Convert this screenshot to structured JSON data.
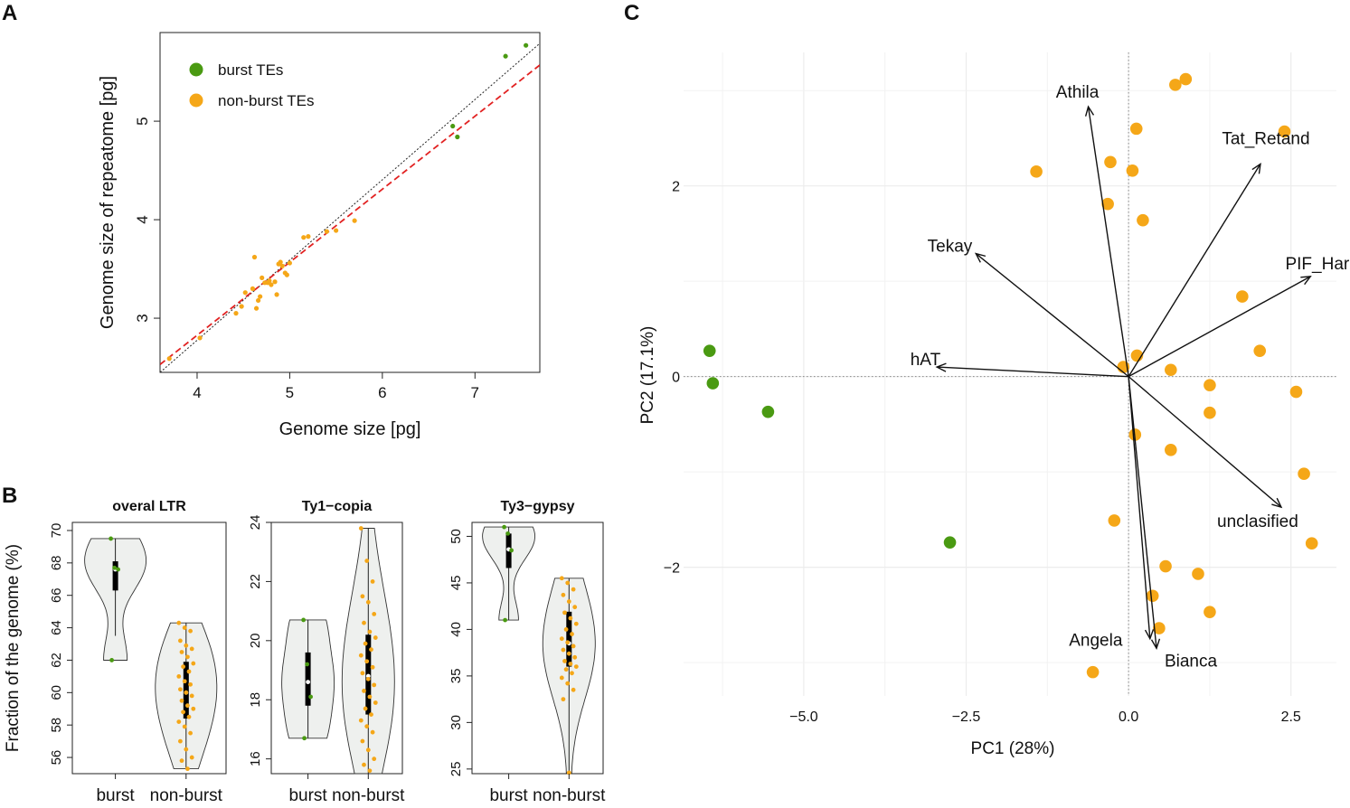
{
  "colors": {
    "burst": "#4a9a12",
    "nonburst": "#f5a718",
    "fit_line": "#e22222",
    "identity_line": "#222222",
    "violin_fill": "#eef0ee",
    "pca_grid": "#ececec"
  },
  "chart_data": [
    {
      "panel": "A",
      "type": "scatter",
      "xlabel": "Genome size [pg]",
      "ylabel": "Genome size of repeatome [pg]",
      "xlim": [
        3.6,
        7.7
      ],
      "ylim": [
        2.45,
        5.9
      ],
      "xticks": [
        4,
        5,
        6,
        7
      ],
      "yticks": [
        3,
        4,
        5
      ],
      "legend": [
        "burst TEs",
        "non-burst TEs"
      ],
      "legend_position": "top-left",
      "series": [
        {
          "name": "burst TEs",
          "x": [
            7.55,
            7.33,
            6.76,
            6.81
          ],
          "y": [
            5.77,
            5.66,
            4.95,
            4.84
          ]
        },
        {
          "name": "non-burst TEs",
          "x": [
            3.7,
            4.03,
            4.42,
            4.48,
            4.52,
            4.6,
            4.62,
            4.64,
            4.66,
            4.68,
            4.7,
            4.73,
            4.76,
            4.78,
            4.8,
            4.84,
            4.86,
            4.88,
            4.9,
            4.92,
            4.95,
            4.97,
            5.0,
            5.15,
            5.2,
            5.4,
            5.5,
            5.7
          ],
          "y": [
            2.59,
            2.8,
            3.05,
            3.12,
            3.26,
            3.3,
            3.62,
            3.1,
            3.18,
            3.22,
            3.41,
            3.36,
            3.36,
            3.38,
            3.34,
            3.37,
            3.24,
            3.55,
            3.57,
            3.53,
            3.46,
            3.44,
            3.56,
            3.82,
            3.83,
            3.88,
            3.89,
            3.99
          ]
        }
      ],
      "lines": [
        {
          "name": "identity",
          "style": "dotted",
          "x": [
            3.6,
            7.7
          ],
          "y": [
            2.45,
            5.79
          ]
        },
        {
          "name": "fit",
          "style": "dashed",
          "x": [
            3.6,
            7.7
          ],
          "y": [
            2.53,
            5.57
          ]
        }
      ]
    },
    {
      "panel": "B",
      "type": "violin",
      "ylabel": "Fraction of the genome (%)",
      "categories": [
        "burst",
        "non-burst"
      ],
      "subplots": [
        {
          "title": "overal LTR",
          "ylim": [
            55,
            70.5
          ],
          "yticks": [
            56,
            58,
            60,
            62,
            64,
            66,
            68,
            70
          ],
          "groups": [
            {
              "name": "burst",
              "range": [
                62,
                69.5
              ],
              "q1": 66.3,
              "median": 67.6,
              "q3": 68.1,
              "whisker": [
                63.5,
                69.5
              ],
              "points": [
                69.5,
                67.7,
                67.6,
                62.0
              ]
            },
            {
              "name": "non-burst",
              "range": [
                55.3,
                64.3
              ],
              "q1": 58.4,
              "median": 60.0,
              "q3": 61.9,
              "whisker": [
                55.3,
                64.3
              ],
              "points": [
                64.3,
                64.0,
                63.8,
                63.2,
                62.9,
                62.7,
                62.5,
                62.2,
                61.8,
                61.6,
                61.3,
                61.0,
                60.7,
                60.5,
                60.2,
                60.0,
                59.8,
                59.5,
                59.2,
                59.0,
                58.8,
                58.5,
                58.2,
                57.9,
                57.5,
                57.0,
                56.5,
                56.0,
                55.8,
                55.3
              ]
            }
          ]
        },
        {
          "title": "Ty1−copia",
          "ylim": [
            15.5,
            24
          ],
          "yticks": [
            16,
            18,
            20,
            22,
            24
          ],
          "groups": [
            {
              "name": "burst",
              "range": [
                16.7,
                20.7
              ],
              "q1": 17.8,
              "median": 18.6,
              "q3": 19.6,
              "whisker": [
                16.7,
                20.7
              ],
              "points": [
                20.7,
                19.2,
                18.1,
                16.7
              ]
            },
            {
              "name": "non-burst",
              "range": [
                15.5,
                23.8
              ],
              "q1": 17.5,
              "median": 18.8,
              "q3": 20.2,
              "whisker": [
                15.5,
                23.8
              ],
              "points": [
                23.8,
                22.7,
                22.0,
                21.5,
                21.3,
                20.9,
                20.6,
                20.3,
                20.1,
                19.9,
                19.7,
                19.5,
                19.3,
                19.1,
                18.9,
                18.7,
                18.5,
                18.3,
                18.1,
                17.9,
                17.7,
                17.5,
                17.3,
                17.1,
                16.9,
                16.6,
                16.3,
                16.0,
                15.8,
                15.6
              ]
            }
          ]
        },
        {
          "title": "Ty3−gypsy",
          "ylim": [
            24.5,
            51.5
          ],
          "yticks": [
            25,
            30,
            35,
            40,
            45,
            50
          ],
          "groups": [
            {
              "name": "burst",
              "range": [
                41.0,
                51.0
              ],
              "q1": 46.6,
              "median": 48.6,
              "q3": 50.3,
              "whisker": [
                41.0,
                51.0
              ],
              "points": [
                51.0,
                50.3,
                48.5,
                41.0
              ]
            },
            {
              "name": "non-burst",
              "range": [
                24.6,
                45.5
              ],
              "q1": 36.0,
              "median": 38.5,
              "q3": 41.9,
              "whisker": [
                24.6,
                45.5
              ],
              "points": [
                45.5,
                45.0,
                44.3,
                43.7,
                43.0,
                42.4,
                41.8,
                41.2,
                40.6,
                40.0,
                39.5,
                39.0,
                38.6,
                38.2,
                37.8,
                37.4,
                37.0,
                36.6,
                36.3,
                36.0,
                35.7,
                35.3,
                34.8,
                34.2,
                33.5,
                32.5,
                24.6
              ]
            }
          ]
        }
      ]
    },
    {
      "panel": "C",
      "type": "scatter",
      "subtype": "pca-biplot",
      "xlabel": "PC1 (28%)",
      "ylabel": "PC2 (17.1%)",
      "xlim": [
        -6.85,
        3.2
      ],
      "ylim": [
        -3.35,
        3.4
      ],
      "xticks": [
        -5.0,
        -2.5,
        0.0,
        2.5
      ],
      "xtick_labels": [
        "−5.0",
        "−2.5",
        "0.0",
        "2.5"
      ],
      "yticks": [
        -2,
        0,
        2
      ],
      "ytick_labels": [
        "−2",
        "0",
        "2"
      ],
      "series": [
        {
          "name": "burst",
          "x": [
            -6.45,
            -6.4,
            -5.55,
            -2.75
          ],
          "y": [
            0.27,
            -0.07,
            -0.37,
            -1.74
          ]
        },
        {
          "name": "non-burst",
          "x": [
            0.72,
            0.88,
            0.12,
            -0.28,
            0.06,
            -1.42,
            -0.32,
            0.22,
            2.4,
            1.75,
            2.02,
            0.13,
            -0.08,
            0.65,
            1.25,
            2.58,
            1.25,
            0.1,
            0.65,
            2.7,
            -0.22,
            2.82,
            0.57,
            1.07,
            0.37,
            1.25,
            0.47,
            -0.55
          ],
          "y": [
            3.06,
            3.12,
            2.6,
            2.25,
            2.16,
            2.15,
            1.81,
            1.64,
            2.57,
            0.84,
            0.27,
            0.22,
            0.1,
            0.07,
            -0.09,
            -0.16,
            -0.38,
            -0.61,
            -0.77,
            -1.02,
            -1.51,
            -1.75,
            -1.99,
            -2.07,
            -2.3,
            -2.47,
            -2.64,
            -3.1
          ]
        }
      ],
      "loadings": [
        {
          "name": "Athila",
          "x": -0.62,
          "y": 2.83
        },
        {
          "name": "Tat_Retand",
          "x": 2.03,
          "y": 2.23
        },
        {
          "name": "Tekay",
          "x": -2.35,
          "y": 1.29
        },
        {
          "name": "PIF_Harbinger",
          "x": 2.8,
          "y": 1.05
        },
        {
          "name": "hAT",
          "x": -2.95,
          "y": 0.1
        },
        {
          "name": "unclasified",
          "x": 2.35,
          "y": -1.37
        },
        {
          "name": "Angela",
          "x": 0.33,
          "y": -2.75
        },
        {
          "name": "Bianca",
          "x": 0.43,
          "y": -2.85
        }
      ]
    }
  ],
  "panel_labels": [
    "A",
    "B",
    "C"
  ]
}
